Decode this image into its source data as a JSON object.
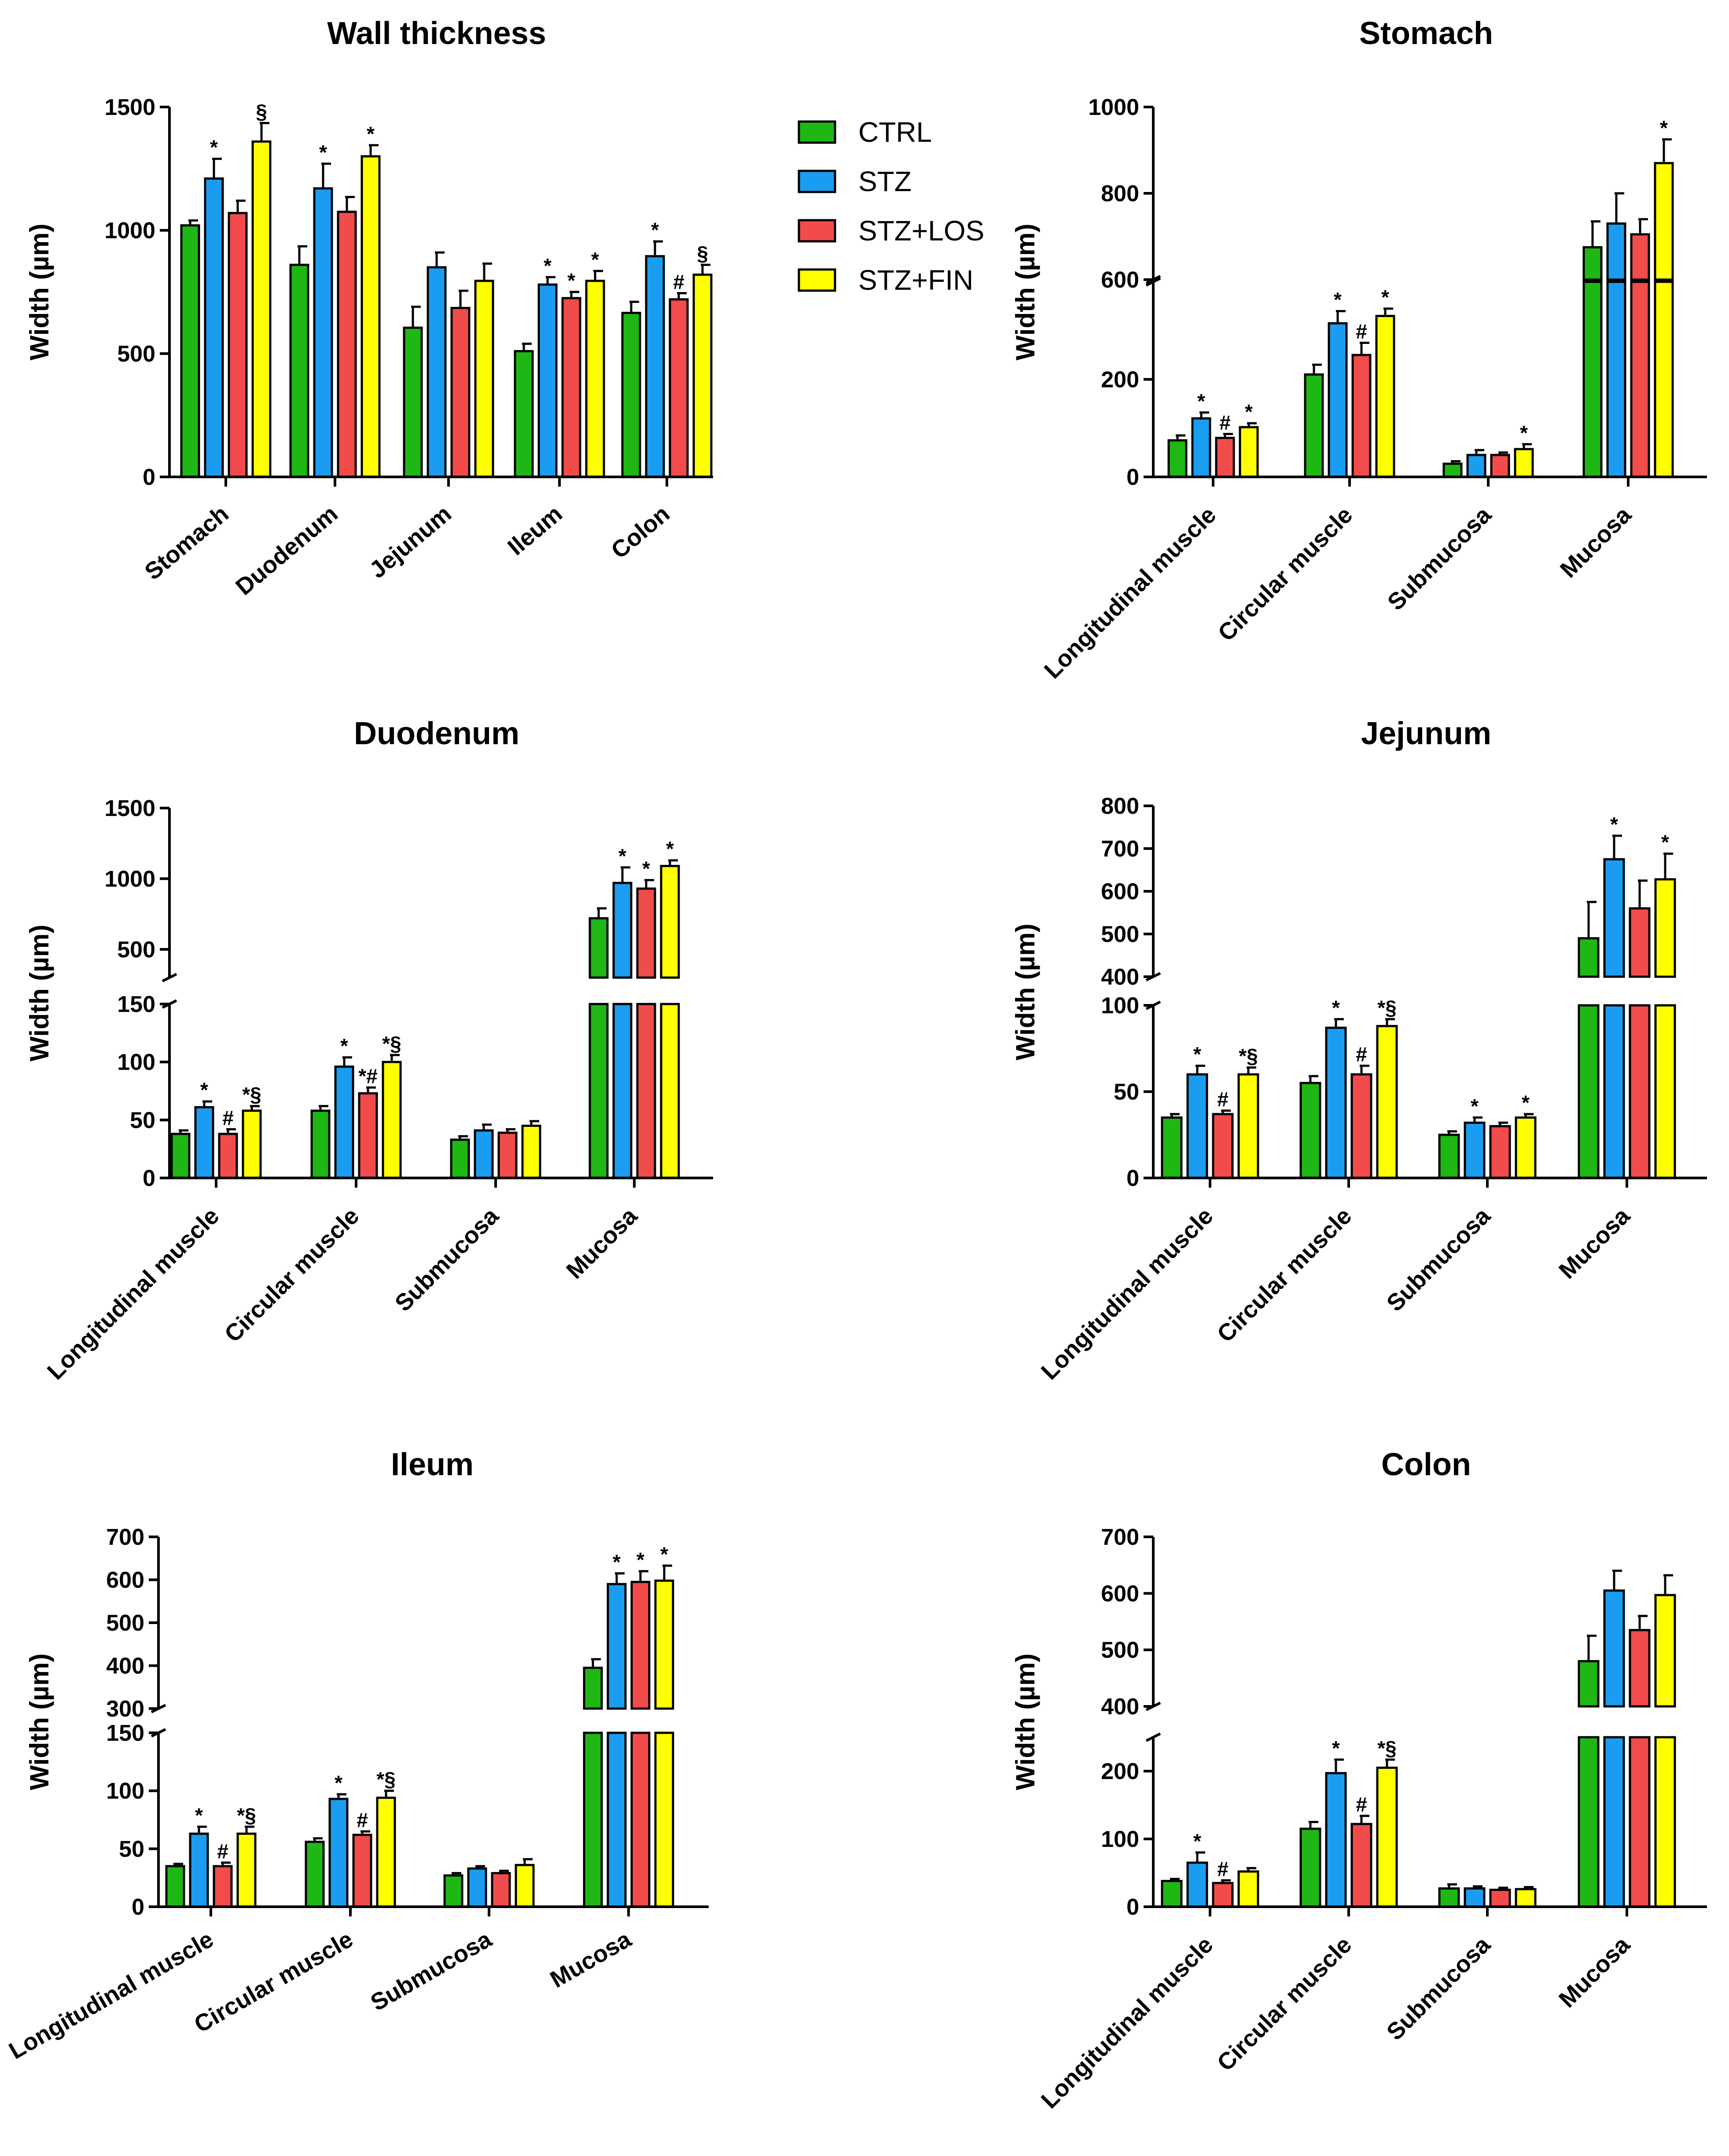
{
  "legend": [
    {
      "label": "CTRL",
      "color": "#1fb714"
    },
    {
      "label": "STZ",
      "color": "#1a9df0"
    },
    {
      "label": "STZ+LOS",
      "color": "#f24b4b"
    },
    {
      "label": "STZ+FIN",
      "color": "#ffff00"
    }
  ],
  "chart_data": [
    {
      "type": "bar",
      "title": "Wall thickness",
      "ylabel": "Width (µm)",
      "xlabel": "",
      "categories": [
        "Stomach",
        "Duodenum",
        "Jejunum",
        "Ileum",
        "Colon"
      ],
      "ylim": [
        0,
        1500
      ],
      "yticks": [
        0,
        500,
        1000,
        1500
      ],
      "series": [
        {
          "name": "CTRL",
          "values": [
            1020,
            860,
            605,
            510,
            665
          ],
          "errors": [
            20,
            75,
            85,
            30,
            45
          ],
          "marks": [
            "",
            "",
            "",
            "",
            ""
          ]
        },
        {
          "name": "STZ",
          "values": [
            1210,
            1170,
            850,
            780,
            895
          ],
          "errors": [
            80,
            100,
            60,
            30,
            60
          ],
          "marks": [
            "*",
            "*",
            "",
            "*",
            "*"
          ]
        },
        {
          "name": "STZ+LOS",
          "values": [
            1070,
            1075,
            685,
            725,
            720
          ],
          "errors": [
            50,
            60,
            70,
            25,
            25
          ],
          "marks": [
            "",
            "",
            "",
            "*",
            "#"
          ]
        },
        {
          "name": "STZ+FIN",
          "values": [
            1360,
            1300,
            795,
            795,
            820
          ],
          "errors": [
            75,
            45,
            70,
            40,
            40
          ],
          "marks": [
            "§",
            "*",
            "",
            "*",
            "§"
          ]
        }
      ]
    },
    {
      "type": "bar",
      "title": "Stomach",
      "ylabel": "Width (µm)",
      "xlabel": "",
      "categories": [
        "Longitudinal muscle",
        "Circular muscle",
        "Submucosa",
        "Mucosa"
      ],
      "axis_break": {
        "lower": [
          0,
          400
        ],
        "upper": [
          600,
          1000
        ]
      },
      "yticks_lower": [
        0,
        200
      ],
      "yticks_upper": [
        600,
        800,
        1000
      ],
      "series": [
        {
          "name": "CTRL",
          "values": [
            75,
            210,
            27,
            675
          ],
          "errors": [
            10,
            20,
            5,
            60
          ],
          "marks": [
            "",
            "",
            "",
            ""
          ]
        },
        {
          "name": "STZ",
          "values": [
            120,
            315,
            45,
            730
          ],
          "errors": [
            12,
            25,
            10,
            70
          ],
          "marks": [
            "*",
            "*",
            "",
            ""
          ]
        },
        {
          "name": "STZ+LOS",
          "values": [
            80,
            250,
            45,
            705
          ],
          "errors": [
            8,
            25,
            5,
            35
          ],
          "marks": [
            "#",
            "#",
            "",
            ""
          ]
        },
        {
          "name": "STZ+FIN",
          "values": [
            102,
            330,
            57,
            870
          ],
          "errors": [
            8,
            15,
            10,
            55
          ],
          "marks": [
            "*",
            "*",
            "*",
            "*"
          ]
        }
      ]
    },
    {
      "type": "bar",
      "title": "Duodenum",
      "ylabel": "Width (µm)",
      "xlabel": "",
      "categories": [
        "Longitudinal muscle",
        "Circular muscle",
        "Submucosa",
        "Mucosa"
      ],
      "axis_break": {
        "lower": [
          0,
          150
        ],
        "upper": [
          300,
          1500
        ]
      },
      "yticks_lower": [
        0,
        50,
        100,
        150
      ],
      "yticks_upper": [
        500,
        1000,
        1500
      ],
      "series": [
        {
          "name": "CTRL",
          "values": [
            38,
            58,
            33,
            720
          ],
          "errors": [
            3,
            4,
            3,
            70
          ],
          "marks": [
            "",
            "",
            "",
            ""
          ]
        },
        {
          "name": "STZ",
          "values": [
            61,
            96,
            41,
            970
          ],
          "errors": [
            5,
            8,
            5,
            110
          ],
          "marks": [
            "*",
            "*",
            "",
            "*"
          ]
        },
        {
          "name": "STZ+LOS",
          "values": [
            38,
            73,
            39,
            930
          ],
          "errors": [
            4,
            5,
            3,
            60
          ],
          "marks": [
            "#",
            "*#",
            "",
            "*"
          ]
        },
        {
          "name": "STZ+FIN",
          "values": [
            58,
            100,
            45,
            1090
          ],
          "errors": [
            4,
            6,
            4,
            40
          ],
          "marks": [
            "*§",
            "*§",
            "",
            "*"
          ]
        }
      ]
    },
    {
      "type": "bar",
      "title": "Jejunum",
      "ylabel": "Width (µm)",
      "xlabel": "",
      "categories": [
        "Longitudinal muscle",
        "Circular muscle",
        "Submucosa",
        "Mucosa"
      ],
      "axis_break": {
        "lower": [
          0,
          100
        ],
        "upper": [
          400,
          800
        ]
      },
      "yticks_lower": [
        0,
        50,
        100
      ],
      "yticks_upper": [
        400,
        500,
        600,
        700,
        800
      ],
      "series": [
        {
          "name": "CTRL",
          "values": [
            35,
            55,
            25,
            490
          ],
          "errors": [
            2,
            4,
            2,
            85
          ],
          "marks": [
            "",
            "",
            "",
            ""
          ]
        },
        {
          "name": "STZ",
          "values": [
            60,
            87,
            32,
            675
          ],
          "errors": [
            5,
            5,
            3,
            55
          ],
          "marks": [
            "*",
            "*",
            "*",
            "*"
          ]
        },
        {
          "name": "STZ+LOS",
          "values": [
            37,
            60,
            30,
            560
          ],
          "errors": [
            2,
            5,
            2,
            65
          ],
          "marks": [
            "#",
            "#",
            "",
            ""
          ]
        },
        {
          "name": "STZ+FIN",
          "values": [
            60,
            88,
            35,
            628
          ],
          "errors": [
            4,
            4,
            2,
            60
          ],
          "marks": [
            "*§",
            "*§",
            "*",
            "*"
          ]
        }
      ]
    },
    {
      "type": "bar",
      "title": "Ileum",
      "ylabel": "Width (µm)",
      "xlabel": "",
      "categories": [
        "Longitudinal muscle",
        "Circular muscle",
        "Submucosa",
        "Mucosa"
      ],
      "axis_break": {
        "lower": [
          0,
          150
        ],
        "upper": [
          300,
          700
        ]
      },
      "yticks_lower": [
        0,
        50,
        100,
        150
      ],
      "yticks_upper": [
        300,
        400,
        500,
        600,
        700
      ],
      "series": [
        {
          "name": "CTRL",
          "values": [
            35,
            56,
            27,
            395
          ],
          "errors": [
            2,
            3,
            2,
            20
          ],
          "marks": [
            "",
            "",
            "",
            ""
          ]
        },
        {
          "name": "STZ",
          "values": [
            63,
            93,
            33,
            590
          ],
          "errors": [
            6,
            4,
            2,
            25
          ],
          "marks": [
            "*",
            "*",
            "",
            "*"
          ]
        },
        {
          "name": "STZ+LOS",
          "values": [
            35,
            62,
            29,
            595
          ],
          "errors": [
            3,
            3,
            2,
            25
          ],
          "marks": [
            "#",
            "#",
            "",
            "*"
          ]
        },
        {
          "name": "STZ+FIN",
          "values": [
            63,
            94,
            36,
            598
          ],
          "errors": [
            6,
            6,
            5,
            35
          ],
          "marks": [
            "*§",
            "*§",
            "",
            "*"
          ]
        }
      ]
    },
    {
      "type": "bar",
      "title": "Colon",
      "ylabel": "Width (µm)",
      "xlabel": "",
      "categories": [
        "Longitudinal muscle",
        "Circular muscle",
        "Submucosa",
        "Mucosa"
      ],
      "axis_break": {
        "lower": [
          0,
          250
        ],
        "upper": [
          400,
          700
        ]
      },
      "yticks_lower": [
        0,
        100,
        200
      ],
      "yticks_upper": [
        400,
        500,
        600,
        700
      ],
      "series": [
        {
          "name": "CTRL",
          "values": [
            38,
            115,
            27,
            480
          ],
          "errors": [
            3,
            10,
            6,
            45
          ],
          "marks": [
            "",
            "",
            "",
            ""
          ]
        },
        {
          "name": "STZ",
          "values": [
            65,
            197,
            27,
            605
          ],
          "errors": [
            15,
            20,
            3,
            35
          ],
          "marks": [
            "*",
            "*",
            "",
            ""
          ]
        },
        {
          "name": "STZ+LOS",
          "values": [
            35,
            122,
            25,
            535
          ],
          "errors": [
            4,
            12,
            3,
            25
          ],
          "marks": [
            "#",
            "#",
            "",
            ""
          ]
        },
        {
          "name": "STZ+FIN",
          "values": [
            52,
            205,
            26,
            597
          ],
          "errors": [
            5,
            12,
            3,
            35
          ],
          "marks": [
            "",
            "*§",
            "",
            ""
          ]
        }
      ]
    }
  ]
}
